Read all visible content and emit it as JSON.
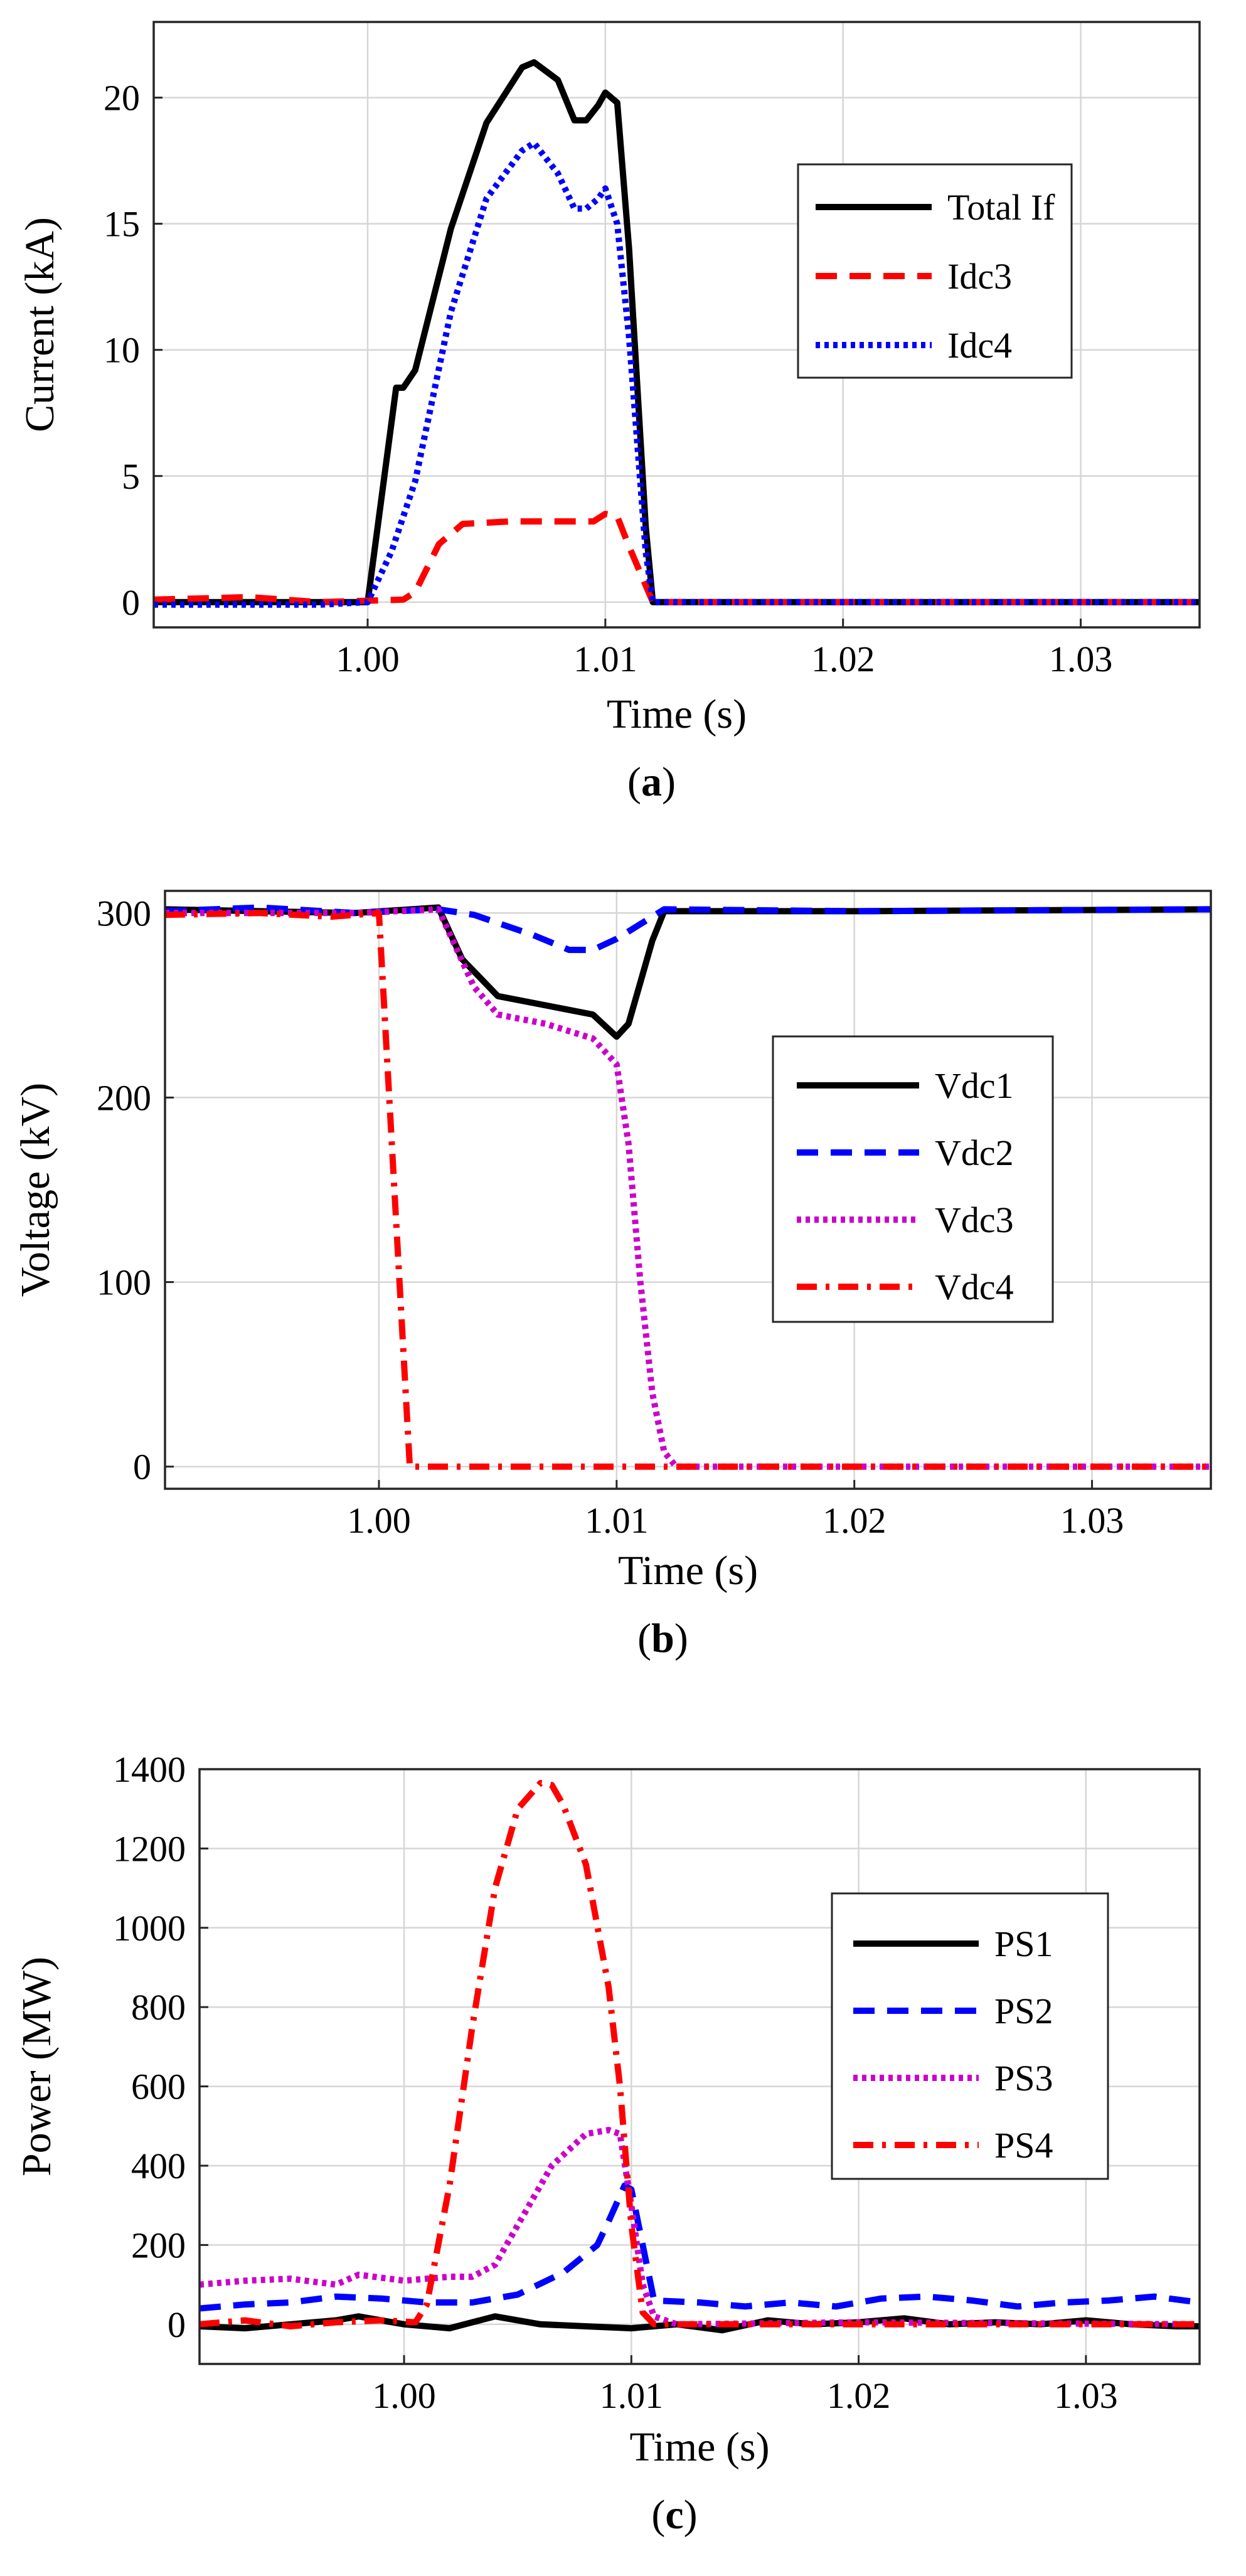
{
  "chart_data": [
    {
      "type": "line",
      "panel": "a",
      "caption_open": "(",
      "caption_letter": "a",
      "caption_close": ")",
      "xlabel": "Time (s)",
      "ylabel": "Current (kA)",
      "xlim": [
        0.991,
        1.035
      ],
      "ylim": [
        -1,
        23
      ],
      "xticks": [
        1.0,
        1.01,
        1.02,
        1.03
      ],
      "xtick_labels": [
        "1.00",
        "1.01",
        "1.02",
        "1.03"
      ],
      "yticks": [
        0,
        5,
        10,
        15,
        20
      ],
      "ytick_labels": [
        "0",
        "5",
        "10",
        "15",
        "20"
      ],
      "grid": true,
      "legend_position": "right-middle",
      "series": [
        {
          "name": "Total If",
          "color": "#000000",
          "style": "solid",
          "x": [
            0.991,
            0.995,
            0.998,
            1.0,
            1.0012,
            1.0015,
            1.002,
            1.0035,
            1.005,
            1.0065,
            1.007,
            1.008,
            1.0087,
            1.0092,
            1.0097,
            1.01,
            1.0105,
            1.011,
            1.0117,
            1.012,
            1.013,
            1.02,
            1.035
          ],
          "y": [
            0.0,
            0.0,
            0.0,
            0.0,
            8.5,
            8.5,
            9.2,
            14.8,
            19.0,
            21.2,
            21.4,
            20.7,
            19.1,
            19.1,
            19.7,
            20.2,
            19.8,
            14.0,
            3.0,
            0.0,
            0.0,
            0.0,
            0.0
          ]
        },
        {
          "name": "Idc3",
          "color": "#ff0000",
          "style": "dashed",
          "x": [
            0.991,
            0.995,
            0.998,
            1.0015,
            1.002,
            1.003,
            1.004,
            1.006,
            1.008,
            1.0095,
            1.01,
            1.0105,
            1.011,
            1.012,
            1.02,
            1.035
          ],
          "y": [
            0.1,
            0.2,
            0.0,
            0.1,
            0.4,
            2.3,
            3.1,
            3.2,
            3.2,
            3.2,
            3.5,
            3.4,
            2.2,
            0.0,
            0.0,
            0.0
          ]
        },
        {
          "name": "Idc4",
          "color": "#0000ff",
          "style": "dotted",
          "x": [
            0.991,
            0.995,
            0.998,
            1.0,
            1.001,
            1.002,
            1.0035,
            1.005,
            1.0065,
            1.007,
            1.008,
            1.0087,
            1.0092,
            1.0097,
            1.01,
            1.0105,
            1.011,
            1.0117,
            1.012,
            1.02,
            1.035
          ],
          "y": [
            -0.1,
            -0.1,
            -0.1,
            0.0,
            2.0,
            4.8,
            11.5,
            16.0,
            17.9,
            18.2,
            17.0,
            15.6,
            15.6,
            16.0,
            16.4,
            15.0,
            10.5,
            2.0,
            0.0,
            0.0,
            0.0
          ]
        }
      ]
    },
    {
      "type": "line",
      "panel": "b",
      "caption_open": "(",
      "caption_letter": "b",
      "caption_close": ")",
      "xlabel": "Time (s)",
      "ylabel": "Voltage (kV)",
      "xlim": [
        0.991,
        1.035
      ],
      "ylim": [
        -12,
        312
      ],
      "xticks": [
        1.0,
        1.01,
        1.02,
        1.03
      ],
      "xtick_labels": [
        "1.00",
        "1.01",
        "1.02",
        "1.03"
      ],
      "yticks": [
        0,
        100,
        200,
        300
      ],
      "ytick_labels": [
        "0",
        "100",
        "200",
        "300"
      ],
      "grid": true,
      "legend_position": "right-middle",
      "series": [
        {
          "name": "Vdc1",
          "color": "#000000",
          "style": "solid",
          "x": [
            0.991,
            0.995,
            0.999,
            1.0025,
            1.0035,
            1.005,
            1.007,
            1.009,
            1.01,
            1.0105,
            1.0115,
            1.012,
            1.02,
            1.035
          ],
          "y": [
            302,
            301,
            300,
            303,
            275,
            255,
            250,
            245,
            233,
            240,
            285,
            301,
            301,
            302
          ]
        },
        {
          "name": "Vdc2",
          "color": "#0000ff",
          "style": "dashed",
          "x": [
            0.991,
            0.995,
            0.999,
            1.0025,
            1.004,
            1.0065,
            1.008,
            1.009,
            1.01,
            1.0115,
            1.012,
            1.02,
            1.035
          ],
          "y": [
            301,
            303,
            300,
            302,
            299,
            288,
            280,
            280,
            286,
            298,
            302,
            301,
            302
          ]
        },
        {
          "name": "Vdc3",
          "color": "#cc00cc",
          "style": "dotted",
          "x": [
            0.991,
            0.996,
            0.999,
            1.0025,
            1.004,
            1.005,
            1.007,
            1.009,
            1.01,
            1.0105,
            1.011,
            1.0115,
            1.012,
            1.0125,
            1.02,
            1.035
          ],
          "y": [
            300,
            300,
            300,
            302,
            260,
            245,
            240,
            232,
            218,
            175,
            100,
            40,
            8,
            0,
            0,
            0
          ]
        },
        {
          "name": "Vdc4",
          "color": "#ff0000",
          "style": "dashdot",
          "x": [
            0.991,
            0.995,
            0.998,
            1.0,
            1.0013,
            1.002,
            1.01,
            1.02,
            1.035
          ],
          "y": [
            299,
            300,
            298,
            300,
            0,
            0,
            0,
            0,
            0
          ]
        }
      ]
    },
    {
      "type": "line",
      "panel": "c",
      "caption_open": "(",
      "caption_letter": "c",
      "caption_close": ")",
      "xlabel": "Time (s)",
      "ylabel": "Power (MW)",
      "xlim": [
        0.991,
        1.035
      ],
      "ylim": [
        -100,
        1400
      ],
      "xticks": [
        1.0,
        1.01,
        1.02,
        1.03
      ],
      "xtick_labels": [
        "1.00",
        "1.01",
        "1.02",
        "1.03"
      ],
      "yticks": [
        0,
        200,
        400,
        600,
        800,
        1000,
        1200,
        1400
      ],
      "ytick_labels": [
        "0",
        "200",
        "400",
        "600",
        "800",
        "1000",
        "1200",
        "1400"
      ],
      "grid": true,
      "legend_position": "right-middle",
      "series": [
        {
          "name": "PS1",
          "color": "#000000",
          "style": "solid",
          "x": [
            0.991,
            0.993,
            0.995,
            0.997,
            0.998,
            1.0,
            1.002,
            1.004,
            1.006,
            1.008,
            1.01,
            1.012,
            1.014,
            1.016,
            1.018,
            1.02,
            1.022,
            1.024,
            1.026,
            1.028,
            1.03,
            1.032,
            1.034,
            1.035
          ],
          "y": [
            -5,
            -10,
            0,
            10,
            20,
            0,
            -10,
            20,
            0,
            -5,
            -10,
            0,
            -15,
            10,
            0,
            5,
            15,
            0,
            5,
            0,
            10,
            0,
            -5,
            -5
          ]
        },
        {
          "name": "PS2",
          "color": "#0000ff",
          "style": "dashed",
          "x": [
            0.991,
            0.993,
            0.995,
            0.997,
            0.999,
            1.001,
            1.003,
            1.005,
            1.007,
            1.0085,
            1.009,
            1.0097,
            1.01,
            1.0105,
            1.011,
            1.013,
            1.015,
            1.017,
            1.019,
            1.021,
            1.023,
            1.025,
            1.027,
            1.029,
            1.031,
            1.033,
            1.035
          ],
          "y": [
            40,
            50,
            55,
            70,
            65,
            55,
            55,
            75,
            130,
            200,
            260,
            350,
            340,
            200,
            60,
            55,
            45,
            55,
            45,
            65,
            70,
            60,
            45,
            55,
            60,
            70,
            55
          ]
        },
        {
          "name": "PS3",
          "color": "#cc00cc",
          "style": "dotted",
          "x": [
            0.991,
            0.993,
            0.995,
            0.997,
            0.998,
            1.0,
            1.002,
            1.003,
            1.004,
            1.005,
            1.0065,
            1.008,
            1.009,
            1.0095,
            1.01,
            1.0105,
            1.011,
            1.012,
            1.02,
            1.035
          ],
          "y": [
            100,
            110,
            115,
            100,
            125,
            110,
            120,
            120,
            150,
            250,
            400,
            480,
            490,
            480,
            300,
            100,
            20,
            0,
            5,
            0
          ]
        },
        {
          "name": "PS4",
          "color": "#ff0000",
          "style": "dashdot",
          "x": [
            0.991,
            0.993,
            0.995,
            0.997,
            0.999,
            1.0005,
            1.001,
            1.002,
            1.003,
            1.004,
            1.005,
            1.006,
            1.0065,
            1.007,
            1.008,
            1.009,
            1.0095,
            1.01,
            1.0105,
            1.011,
            1.012,
            1.02,
            1.035
          ],
          "y": [
            0,
            10,
            -5,
            5,
            10,
            5,
            50,
            350,
            750,
            1100,
            1300,
            1365,
            1360,
            1310,
            1160,
            850,
            600,
            250,
            30,
            0,
            0,
            0,
            0
          ]
        }
      ]
    }
  ]
}
